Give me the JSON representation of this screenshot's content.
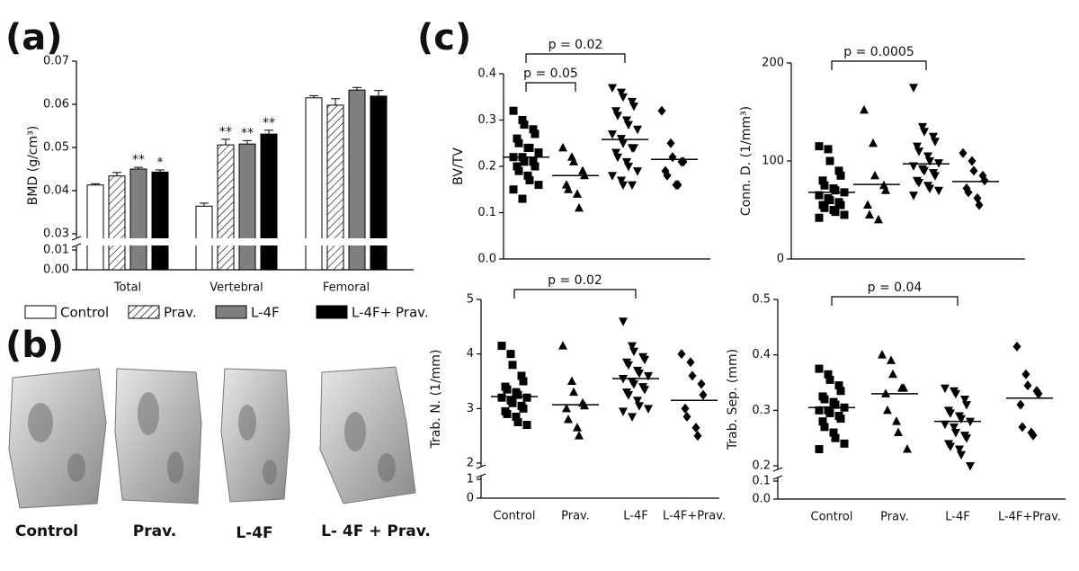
{
  "panel_labels": [
    "(a)",
    "(b)",
    "(c)"
  ],
  "image_labels": [
    "Control",
    "Prav.",
    "L-4F",
    "L- 4F + Prav."
  ],
  "chart_data": [
    {
      "type": "bar",
      "ylabel": "BMD (g/cm³)",
      "categories": [
        "Total",
        "Vertebral",
        "Femoral"
      ],
      "ylim": [
        0.03,
        0.07
      ],
      "yticks": [
        0.03,
        0.04,
        0.05,
        0.06,
        0.07
      ],
      "ylim_lower": [
        0,
        0.01
      ],
      "yticks_lower": [
        {
          "value": 0,
          "label": "0.00"
        },
        0.01
      ],
      "series": [
        {
          "name": "Control",
          "color": "#ffffff",
          "values": [
            0.0413,
            0.0364,
            0.0615
          ],
          "errors": [
            0.0003,
            0.0007,
            0.0005
          ]
        },
        {
          "name": "Prav.",
          "color": "#ffffff",
          "pattern": "hatch",
          "values": [
            0.0434,
            0.0506,
            0.0598
          ],
          "errors": [
            0.0008,
            0.0013,
            0.0015
          ],
          "stars": [
            null,
            "**",
            null
          ]
        },
        {
          "name": "L-4F",
          "color": "#7f7f7f",
          "values": [
            0.045,
            0.0508,
            0.0633
          ],
          "errors": [
            0.0004,
            0.0008,
            0.0006
          ],
          "stars": [
            "**",
            "**",
            null
          ]
        },
        {
          "name": "L-4F+ Prav.",
          "color": "#000000",
          "values": [
            0.0443,
            0.0531,
            0.0619
          ],
          "errors": [
            0.0005,
            0.0009,
            0.0013
          ],
          "stars": [
            "*",
            "**",
            null
          ]
        }
      ]
    },
    {
      "type": "strip",
      "ylabel": "BV/TV",
      "ylim": [
        0,
        0.4
      ],
      "yticks": [
        {
          "value": 0,
          "label": "0.0"
        },
        0.1,
        0.2,
        0.3,
        0.4
      ],
      "annotations": [
        "p = 0.02",
        "p = 0.05"
      ],
      "groups": [
        {
          "marker": "square",
          "mean": 0.22,
          "values": [
            0.32,
            0.3,
            0.29,
            0.28,
            0.27,
            0.26,
            0.25,
            0.24,
            0.24,
            0.23,
            0.22,
            0.22,
            0.21,
            0.21,
            0.2,
            0.2,
            0.19,
            0.18,
            0.17,
            0.16,
            0.15,
            0.13
          ]
        },
        {
          "marker": "triangle",
          "mean": 0.18,
          "values": [
            0.24,
            0.22,
            0.21,
            0.19,
            0.18,
            0.16,
            0.15,
            0.14,
            0.11
          ]
        },
        {
          "marker": "triangle-down",
          "mean": 0.258,
          "values": [
            0.37,
            0.36,
            0.35,
            0.34,
            0.33,
            0.32,
            0.31,
            0.3,
            0.29,
            0.28,
            0.27,
            0.26,
            0.25,
            0.24,
            0.24,
            0.23,
            0.22,
            0.21,
            0.2,
            0.19,
            0.18,
            0.17,
            0.16,
            0.16
          ]
        },
        {
          "marker": "diamond",
          "mean": 0.215,
          "values": [
            0.32,
            0.25,
            0.22,
            0.21,
            0.21,
            0.19,
            0.18,
            0.16,
            0.16
          ]
        }
      ]
    },
    {
      "type": "strip",
      "ylabel": "Conn. D. (1/mm³)",
      "ylim": [
        0,
        200
      ],
      "yticks": [
        0,
        100,
        200
      ],
      "annotations": [
        "p = 0.0005"
      ],
      "groups": [
        {
          "marker": "square",
          "mean": 68,
          "values": [
            115,
            112,
            100,
            90,
            85,
            80,
            75,
            72,
            70,
            68,
            65,
            62,
            60,
            58,
            55,
            55,
            52,
            50,
            48,
            45,
            42
          ]
        },
        {
          "marker": "triangle",
          "mean": 76,
          "values": [
            152,
            118,
            85,
            75,
            70,
            55,
            45,
            40
          ]
        },
        {
          "marker": "triangle-down",
          "mean": 97,
          "values": [
            175,
            135,
            130,
            125,
            120,
            115,
            110,
            105,
            100,
            98,
            95,
            92,
            90,
            88,
            85,
            80,
            78,
            75,
            72,
            70,
            65
          ]
        },
        {
          "marker": "diamond",
          "mean": 79,
          "values": [
            108,
            100,
            90,
            85,
            80,
            72,
            68,
            62,
            55
          ]
        }
      ]
    },
    {
      "type": "strip",
      "ylabel": "Trab. N. (1/mm)",
      "ylim": [
        2,
        5
      ],
      "yticks": [
        2,
        3,
        4,
        5
      ],
      "ylim_lower": [
        0,
        1
      ],
      "yticks_lower": [
        0,
        1
      ],
      "categories": [
        "Control",
        "Prav.",
        "L-4F",
        "L-4F+Prav."
      ],
      "annotations": [
        "p = 0.02"
      ],
      "groups": [
        {
          "marker": "square",
          "mean": 3.22,
          "values": [
            4.15,
            4.0,
            3.8,
            3.6,
            3.5,
            3.4,
            3.35,
            3.3,
            3.25,
            3.2,
            3.2,
            3.15,
            3.1,
            3.05,
            3.0,
            2.95,
            2.9,
            2.85,
            2.75,
            2.7
          ]
        },
        {
          "marker": "triangle",
          "mean": 3.07,
          "values": [
            4.15,
            3.5,
            3.3,
            3.1,
            3.05,
            3.0,
            2.8,
            2.65,
            2.5
          ]
        },
        {
          "marker": "triangle-down",
          "mean": 3.55,
          "values": [
            4.6,
            4.15,
            4.05,
            3.95,
            3.9,
            3.85,
            3.8,
            3.7,
            3.65,
            3.6,
            3.55,
            3.5,
            3.45,
            3.4,
            3.35,
            3.3,
            3.25,
            3.15,
            3.05,
            3.0,
            2.95,
            2.85
          ]
        },
        {
          "marker": "diamond",
          "mean": 3.15,
          "values": [
            4.0,
            3.85,
            3.6,
            3.45,
            3.25,
            3.0,
            2.85,
            2.65,
            2.5
          ]
        }
      ]
    },
    {
      "type": "strip",
      "ylabel": "Trab. Sep. (mm)",
      "ylim": [
        0.2,
        0.5
      ],
      "yticks": [
        0.2,
        0.3,
        0.4,
        0.5
      ],
      "ylim_lower": [
        0,
        0.1
      ],
      "yticks_lower": [
        {
          "value": 0,
          "label": "0.0"
        },
        0.1
      ],
      "categories": [
        "Control",
        "Prav.",
        "L-4F",
        "L-4F+Prav."
      ],
      "annotations": [
        "p = 0.04"
      ],
      "groups": [
        {
          "marker": "square",
          "mean": 0.305,
          "values": [
            0.375,
            0.365,
            0.355,
            0.345,
            0.335,
            0.325,
            0.32,
            0.315,
            0.31,
            0.305,
            0.3,
            0.3,
            0.295,
            0.29,
            0.285,
            0.28,
            0.27,
            0.26,
            0.25,
            0.24,
            0.23
          ]
        },
        {
          "marker": "triangle",
          "mean": 0.33,
          "values": [
            0.4,
            0.39,
            0.365,
            0.34,
            0.34,
            0.33,
            0.3,
            0.28,
            0.26,
            0.23
          ]
        },
        {
          "marker": "triangle-down",
          "mean": 0.28,
          "values": [
            0.34,
            0.335,
            0.33,
            0.32,
            0.31,
            0.3,
            0.295,
            0.29,
            0.285,
            0.28,
            0.275,
            0.27,
            0.26,
            0.255,
            0.25,
            0.24,
            0.235,
            0.23,
            0.22,
            0.2
          ]
        },
        {
          "marker": "diamond",
          "mean": 0.322,
          "values": [
            0.415,
            0.365,
            0.345,
            0.335,
            0.33,
            0.31,
            0.27,
            0.26,
            0.255
          ]
        }
      ]
    }
  ]
}
